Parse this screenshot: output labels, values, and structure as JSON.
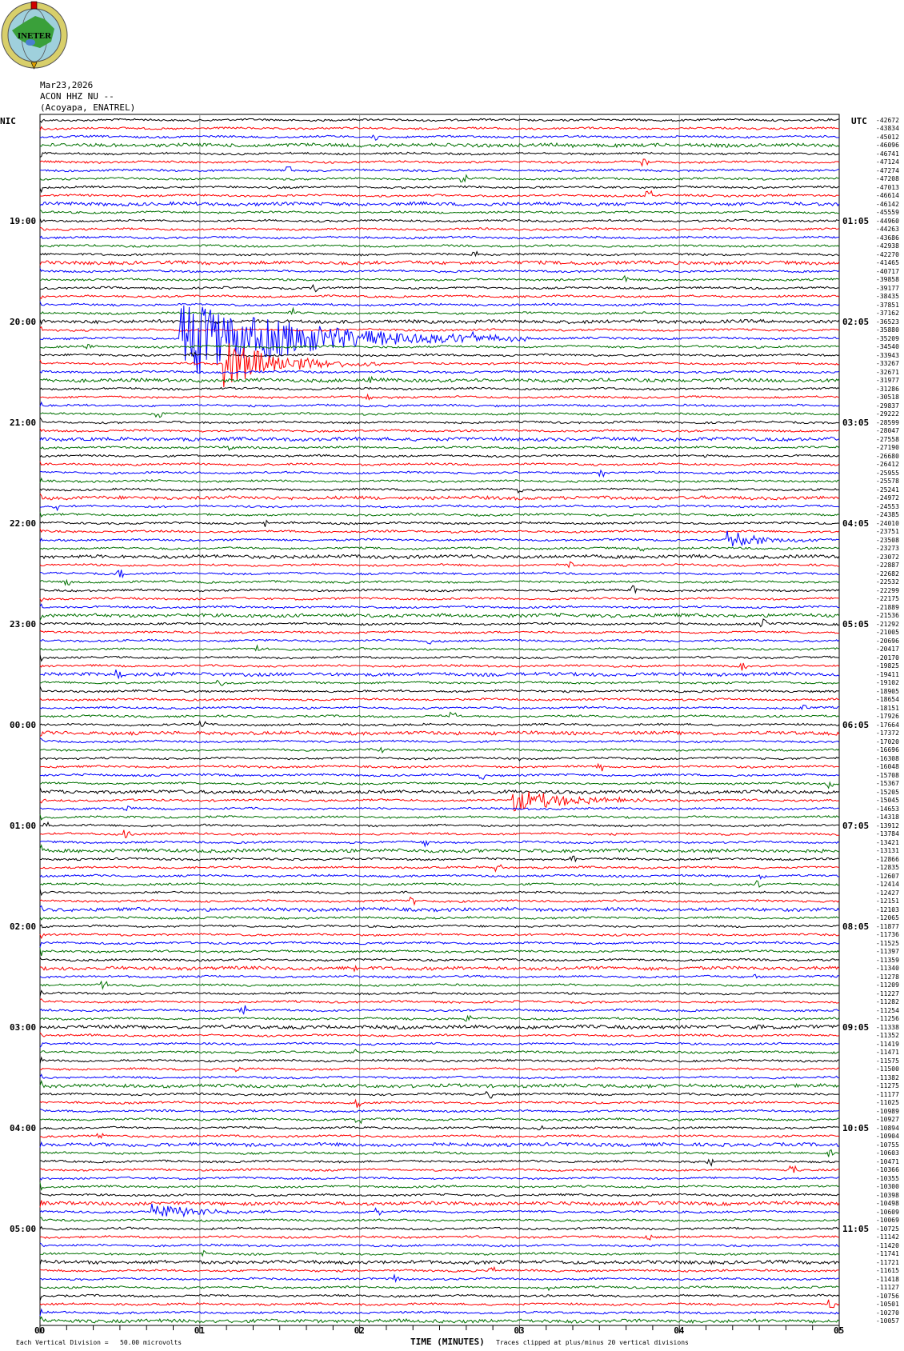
{
  "logo_text": "INETER",
  "header": {
    "date": "Mar23,2026",
    "station": "ACON HHZ NU --",
    "location": "(Acoyapa, ENATREL)"
  },
  "left_zone_label": "NIC",
  "right_zone_label": "UTC",
  "chart_data": {
    "type": "line",
    "subtype": "helicorder",
    "xlabel": "TIME (MINUTES)",
    "x_ticks": [
      "00",
      "01",
      "02",
      "03",
      "04",
      "05"
    ],
    "xlim": [
      0,
      5
    ],
    "minor_tick_seconds": 10,
    "grid": "vertical lines each minute",
    "trace_colors": [
      "#000000",
      "#ff0000",
      "#0000ff",
      "#007000"
    ],
    "rows": 144,
    "minutes_per_row": 5,
    "left_time_labels": [
      {
        "row": 12,
        "label": "19:00"
      },
      {
        "row": 24,
        "label": "20:00"
      },
      {
        "row": 36,
        "label": "21:00"
      },
      {
        "row": 48,
        "label": "22:00"
      },
      {
        "row": 60,
        "label": "23:00"
      },
      {
        "row": 72,
        "label": "00:00"
      },
      {
        "row": 84,
        "label": "01:00"
      },
      {
        "row": 96,
        "label": "02:00"
      },
      {
        "row": 108,
        "label": "03:00"
      },
      {
        "row": 120,
        "label": "04:00"
      },
      {
        "row": 132,
        "label": "05:00"
      }
    ],
    "right_time_labels": [
      {
        "row": 12,
        "label": "01:05"
      },
      {
        "row": 24,
        "label": "02:05"
      },
      {
        "row": 36,
        "label": "03:05"
      },
      {
        "row": 48,
        "label": "04:05"
      },
      {
        "row": 60,
        "label": "05:05"
      },
      {
        "row": 72,
        "label": "06:05"
      },
      {
        "row": 84,
        "label": "07:05"
      },
      {
        "row": 96,
        "label": "08:05"
      },
      {
        "row": 108,
        "label": "09:05"
      },
      {
        "row": 120,
        "label": "10:05"
      },
      {
        "row": 132,
        "label": "11:05"
      }
    ],
    "row_offsets": [
      "-42672",
      "-43834",
      "-45012",
      "-46096",
      "-46741",
      "-47124",
      "-47274",
      "-47208",
      "-47013",
      "-46614",
      "-46142",
      "-45559",
      "-44960",
      "-44263",
      "-43686",
      "-42938",
      "-42270",
      "-41465",
      "-40717",
      "-39858",
      "-39177",
      "-38435",
      "-37851",
      "-37162",
      "-36523",
      "-35880",
      "-35209",
      "-34540",
      "-33943",
      "-33267",
      "-32671",
      "-31977",
      "-31286",
      "-30518",
      "-29837",
      "-29222",
      "-28599",
      "-28047",
      "-27558",
      "-27190",
      "-26680",
      "-26412",
      "-25955",
      "-25578",
      "-25241",
      "-24972",
      "-24553",
      "-24385",
      "-24010",
      "-23751",
      "-23508",
      "-23273",
      "-23072",
      "-22887",
      "-22682",
      "-22532",
      "-22299",
      "-22175",
      "-21889",
      "-21536",
      "-21292",
      "-21005",
      "-20696",
      "-20417",
      "-20170",
      "-19825",
      "-19411",
      "-19102",
      "-18905",
      "-18654",
      "-18151",
      "-17926",
      "-17664",
      "-17372",
      "-17020",
      "-16696",
      "-16308",
      "-16048",
      "-15708",
      "-15367",
      "-15205",
      "-15045",
      "-14653",
      "-14318",
      "-13912",
      "-13784",
      "-13421",
      "-13131",
      "-12866",
      "-12835",
      "-12607",
      "-12414",
      "-12427",
      "-12151",
      "-12103",
      "-12065",
      "-11877",
      "-11736",
      "-11525",
      "-11397",
      "-11359",
      "-11340",
      "-11278",
      "-11209",
      "-11227",
      "-11282",
      "-11254",
      "-11256",
      "-11338",
      "-11352",
      "-11419",
      "-11471",
      "-11575",
      "-11500",
      "-11382",
      "-11275",
      "-11177",
      "-11025",
      "-10989",
      "-10927",
      "-10894",
      "-10904",
      "-10755",
      "-10603",
      "-10471",
      "-10366",
      "-10355",
      "-10300",
      "-10398",
      "-10498",
      "-10609",
      "-10069",
      "-10725",
      "-11142",
      "-11420",
      "-11741",
      "-11721",
      "-11615",
      "-11418",
      "-11127",
      "-10756",
      "-10501",
      "-10270",
      "-10057"
    ],
    "events": [
      {
        "row": 26,
        "minute": 0.87,
        "duration_min": 2.2,
        "amplitude_rows": 5
      },
      {
        "row": 29,
        "minute": 1.15,
        "duration_min": 1.0,
        "amplitude_rows": 3
      },
      {
        "row": 50,
        "minute": 4.3,
        "duration_min": 0.7,
        "amplitude_rows": 1
      },
      {
        "row": 81,
        "minute": 2.95,
        "duration_min": 1.0,
        "amplitude_rows": 1.5
      },
      {
        "row": 130,
        "minute": 0.7,
        "duration_min": 0.8,
        "amplitude_rows": 1
      }
    ]
  },
  "footer": {
    "scale_note": "Each Vertical Division =   50.00 microvolts",
    "clip_note": "Traces clipped at plus/minus 20 vertical divisions"
  }
}
